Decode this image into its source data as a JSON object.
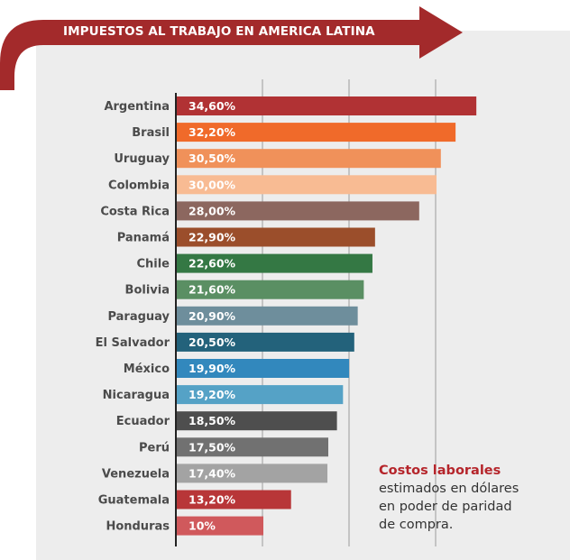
{
  "banner": {
    "title": "IMPUESTOS AL TRABAJO EN AMERICA LATINA"
  },
  "note": {
    "title": "Costos laborales",
    "line1": "estimados en dólares",
    "line2": "en poder de paridad",
    "line3": "de compra."
  },
  "colors": {
    "banner": "#a32a2b",
    "panel": "#ededed",
    "label": "#4b4b4b",
    "axis": "#222222",
    "gridline": "#9a9a9a"
  },
  "chart_data": {
    "type": "bar",
    "orientation": "horizontal",
    "title": "IMPUESTOS AL TRABAJO EN AMERICA LATINA",
    "xlim": [
      0,
      35
    ],
    "gridlines_at": [
      10,
      20,
      30
    ],
    "categories": [
      "Argentina",
      "Brasil",
      "Uruguay",
      "Colombia",
      "Costa Rica",
      "Panamá",
      "Chile",
      "Bolivia",
      "Paraguay",
      "El Salvador",
      "México",
      "Nicaragua",
      "Ecuador",
      "Perú",
      "Venezuela",
      "Guatemala",
      "Honduras"
    ],
    "values": [
      34.6,
      32.2,
      30.5,
      30.0,
      28.0,
      22.9,
      22.6,
      21.6,
      20.9,
      20.5,
      19.9,
      19.2,
      18.5,
      17.5,
      17.4,
      13.2,
      10.0
    ],
    "value_labels": [
      "34,60%",
      "32,20%",
      "30,50%",
      "30,00%",
      "28,00%",
      "22,90%",
      "22,60%",
      "21,60%",
      "20,90%",
      "20,50%",
      "19,90%",
      "19,20%",
      "18,50%",
      "17,50%",
      "17,40%",
      "13,20%",
      "10%"
    ],
    "bar_colors": [
      "#b13234",
      "#f06a2a",
      "#f0915a",
      "#f8bb93",
      "#8c675f",
      "#9b4e2b",
      "#347844",
      "#5a8f63",
      "#6e8e9c",
      "#23627b",
      "#3288bd",
      "#55a2c6",
      "#4e4e4e",
      "#717171",
      "#a3a3a3",
      "#b83638",
      "#d0595c"
    ]
  }
}
